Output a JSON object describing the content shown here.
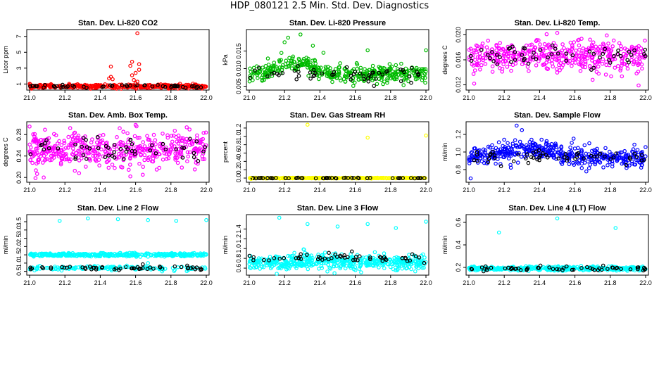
{
  "main_title": "HDP_080121  2.5 Min. Std. Dev. Diagnostics",
  "chart_data": [
    {
      "type": "scatter",
      "title": "Stan. Dev. Li-820 CO2",
      "ylabel": "Licor ppm",
      "xlim": [
        21.0,
        22.0
      ],
      "ylim": [
        0.5,
        7.6
      ],
      "xticks": [
        "21.0",
        "21.2",
        "21.4",
        "21.6",
        "21.8",
        "22.0"
      ],
      "yticks": [
        1,
        3,
        5,
        7
      ],
      "ytick_labels": [
        "1",
        "3",
        "5",
        "7"
      ],
      "series": [
        {
          "name": "main",
          "color": "#ff0000",
          "base": 0.7,
          "noise": 0.12,
          "n": 380
        },
        {
          "name": "black",
          "color": "#000000",
          "base": 0.7,
          "noise": 0.08,
          "n": 55
        }
      ],
      "outliers": [
        {
          "x": 21.61,
          "y": 7.4
        },
        {
          "x": 21.58,
          "y": 3.8
        },
        {
          "x": 21.57,
          "y": 3.3
        },
        {
          "x": 21.62,
          "y": 3.5
        },
        {
          "x": 21.62,
          "y": 2.8
        },
        {
          "x": 21.6,
          "y": 2.4
        },
        {
          "x": 21.58,
          "y": 2.1
        },
        {
          "x": 21.46,
          "y": 3.2
        },
        {
          "x": 21.46,
          "y": 1.9
        },
        {
          "x": 21.45,
          "y": 1.7
        },
        {
          "x": 21.47,
          "y": 1.6
        },
        {
          "x": 21.59,
          "y": 1.5
        },
        {
          "x": 21.61,
          "y": 1.3
        },
        {
          "x": 21.6,
          "y": 1.1
        }
      ]
    },
    {
      "type": "scatter",
      "title": "Stan. Dev. Li-820 Pressure",
      "ylabel": "kPa",
      "xlim": [
        21.0,
        22.0
      ],
      "ylim": [
        0.0045,
        0.0205
      ],
      "xticks": [
        "21.0",
        "21.2",
        "21.4",
        "21.6",
        "21.8",
        "22.0"
      ],
      "yticks": [
        0.005,
        0.01,
        0.015
      ],
      "ytick_labels": [
        "0.005",
        "0.010",
        "0.015"
      ],
      "series": [
        {
          "name": "main",
          "color": "#00bb00",
          "base": 0.0085,
          "noise": 0.0012,
          "n": 420,
          "bump": {
            "center": 21.25,
            "width": 0.12,
            "amp": 0.003
          }
        },
        {
          "name": "black",
          "color": "#000000",
          "base": 0.0085,
          "noise": 0.0012,
          "n": 55
        }
      ],
      "outliers": [
        {
          "x": 21.29,
          "y": 0.0197
        },
        {
          "x": 21.22,
          "y": 0.0188
        },
        {
          "x": 21.2,
          "y": 0.0175
        },
        {
          "x": 21.67,
          "y": 0.0152
        },
        {
          "x": 22.0,
          "y": 0.0152
        },
        {
          "x": 21.42,
          "y": 0.0145
        },
        {
          "x": 21.36,
          "y": 0.0165
        }
      ]
    },
    {
      "type": "scatter",
      "title": "Stan. Dev. Li-820 Temp.",
      "ylabel": "degrees C",
      "xlim": [
        21.0,
        22.0
      ],
      "ylim": [
        0.0115,
        0.0205
      ],
      "xticks": [
        "21.0",
        "21.2",
        "21.4",
        "21.6",
        "21.8",
        "22.0"
      ],
      "yticks": [
        0.012,
        0.016,
        0.02
      ],
      "ytick_labels": [
        "0.012",
        "0.016",
        "0.020"
      ],
      "series": [
        {
          "name": "main",
          "color": "#ff00ff",
          "base": 0.0165,
          "noise": 0.0012,
          "n": 430
        },
        {
          "name": "black",
          "color": "#000000",
          "base": 0.0165,
          "noise": 0.0008,
          "n": 55
        }
      ],
      "outliers": [
        {
          "x": 21.5,
          "y": 0.0203
        },
        {
          "x": 21.44,
          "y": 0.0201
        },
        {
          "x": 21.78,
          "y": 0.0199
        },
        {
          "x": 21.03,
          "y": 0.0122
        },
        {
          "x": 21.96,
          "y": 0.0119
        },
        {
          "x": 21.7,
          "y": 0.0128
        }
      ]
    },
    {
      "type": "scatter",
      "title": "Stan. Dev. Amb. Box Temp.",
      "ylabel": "degrees C",
      "xlim": [
        21.0,
        22.0
      ],
      "ylim": [
        0.195,
        0.3
      ],
      "xticks": [
        "21.0",
        "21.2",
        "21.4",
        "21.6",
        "21.8",
        "22.0"
      ],
      "yticks": [
        0.2,
        0.24,
        0.28
      ],
      "ytick_labels": [
        "0.20",
        "0.24",
        "0.28"
      ],
      "series": [
        {
          "name": "main",
          "color": "#ff00ff",
          "base": 0.252,
          "noise": 0.016,
          "n": 470
        },
        {
          "name": "black",
          "color": "#000000",
          "base": 0.252,
          "noise": 0.012,
          "n": 55
        }
      ],
      "outliers": [
        {
          "x": 21.6,
          "y": 0.298
        },
        {
          "x": 21.23,
          "y": 0.292
        },
        {
          "x": 21.0,
          "y": 0.295
        },
        {
          "x": 21.08,
          "y": 0.2
        },
        {
          "x": 21.28,
          "y": 0.208
        },
        {
          "x": 21.57,
          "y": 0.202
        }
      ]
    },
    {
      "type": "scatter",
      "title": "Stan. Dev. Gas Stream RH",
      "ylabel": "percent",
      "xlim": [
        21.0,
        22.0
      ],
      "ylim": [
        -0.05,
        1.3
      ],
      "xticks": [
        "21.0",
        "21.2",
        "21.4",
        "21.6",
        "21.8",
        "22.0"
      ],
      "yticks": [
        0.0,
        0.2,
        0.4,
        0.6,
        0.8,
        1.0,
        1.2
      ],
      "ytick_labels": [
        "0.0",
        "0.2",
        "0.4",
        "0.6",
        "0.8",
        "1.0",
        "1.2"
      ],
      "series": [
        {
          "name": "main",
          "color": "#ffff00",
          "base": 0.0,
          "noise": 0.004,
          "n": 400
        },
        {
          "name": "black",
          "color": "#000000",
          "base": 0.0,
          "noise": 0.003,
          "n": 55
        }
      ],
      "outliers": [
        {
          "x": 21.33,
          "y": 1.28
        },
        {
          "x": 21.67,
          "y": 0.97
        },
        {
          "x": 22.0,
          "y": 1.02
        },
        {
          "x": 21.01,
          "y": -0.02
        }
      ]
    },
    {
      "type": "scatter",
      "title": "Stan. Dev. Sample Flow",
      "ylabel": "ml/min",
      "xlim": [
        21.0,
        22.0
      ],
      "ylim": [
        0.68,
        1.32
      ],
      "xticks": [
        "21.0",
        "21.2",
        "21.4",
        "21.6",
        "21.8",
        "22.0"
      ],
      "yticks": [
        0.8,
        1.0,
        1.2
      ],
      "ytick_labels": [
        "0.8",
        "1.0",
        "1.2"
      ],
      "series": [
        {
          "name": "main",
          "color": "#0000ff",
          "base": 0.94,
          "noise": 0.055,
          "n": 450,
          "bump": {
            "center": 21.35,
            "width": 0.18,
            "amp": 0.1
          }
        },
        {
          "name": "black",
          "color": "#000000",
          "base": 0.94,
          "noise": 0.04,
          "n": 55
        }
      ],
      "outliers": [
        {
          "x": 21.27,
          "y": 1.3
        },
        {
          "x": 21.01,
          "y": 0.7
        },
        {
          "x": 21.3,
          "y": 1.25
        }
      ]
    },
    {
      "type": "scatter",
      "title": "Stan. Dev. Line 2 Flow",
      "ylabel": "ml/min",
      "xlim": [
        21.0,
        22.0
      ],
      "ylim": [
        0.4,
        3.8
      ],
      "xticks": [
        "21.0",
        "21.2",
        "21.4",
        "21.6",
        "21.8",
        "22.0"
      ],
      "yticks": [
        0.5,
        1.0,
        1.5,
        2.0,
        2.5,
        3.0,
        3.5
      ],
      "ytick_labels": [
        "0.5",
        "1.0",
        "1.5",
        "2.0",
        "2.5",
        "3.0",
        "3.5"
      ],
      "series": [
        {
          "name": "upper",
          "color": "#00ffff",
          "base": 1.5,
          "noise": 0.05,
          "n": 380
        },
        {
          "name": "lower",
          "color": "#00ffff",
          "base": 0.7,
          "noise": 0.06,
          "n": 150
        },
        {
          "name": "black",
          "color": "#000000",
          "base": 0.7,
          "noise": 0.06,
          "n": 55
        }
      ],
      "outliers": [
        {
          "x": 21.17,
          "y": 3.55
        },
        {
          "x": 21.33,
          "y": 3.7
        },
        {
          "x": 21.5,
          "y": 3.65
        },
        {
          "x": 21.67,
          "y": 3.6
        },
        {
          "x": 21.83,
          "y": 3.55
        },
        {
          "x": 22.0,
          "y": 3.6
        },
        {
          "x": 21.55,
          "y": 0.85
        },
        {
          "x": 21.67,
          "y": 1.0
        },
        {
          "x": 21.75,
          "y": 0.5
        }
      ]
    },
    {
      "type": "scatter",
      "title": "Stan. Dev. Line 3 Flow",
      "ylabel": "ml/min",
      "xlim": [
        21.0,
        22.0
      ],
      "ylim": [
        0.5,
        1.65
      ],
      "xticks": [
        "21.0",
        "21.2",
        "21.4",
        "21.6",
        "21.8",
        "22.0"
      ],
      "yticks": [
        0.6,
        0.8,
        1.0,
        1.2,
        1.4
      ],
      "ytick_labels": [
        "0.6",
        "0.8",
        "1.0",
        "1.2",
        "1.4"
      ],
      "series": [
        {
          "name": "main",
          "color": "#00ffff",
          "base": 0.72,
          "noise": 0.08,
          "n": 500
        },
        {
          "name": "black",
          "color": "#000000",
          "base": 0.82,
          "noise": 0.05,
          "n": 55
        }
      ],
      "outliers": [
        {
          "x": 21.17,
          "y": 1.63
        },
        {
          "x": 21.33,
          "y": 1.5
        },
        {
          "x": 21.5,
          "y": 1.45
        },
        {
          "x": 21.67,
          "y": 1.5
        },
        {
          "x": 21.83,
          "y": 1.42
        },
        {
          "x": 22.0,
          "y": 1.55
        },
        {
          "x": 21.31,
          "y": 0.98
        }
      ]
    },
    {
      "type": "scatter",
      "title": "Stan. Dev. Line 4 (LT) Flow",
      "ylabel": "ml/min",
      "xlim": [
        21.0,
        22.0
      ],
      "ylim": [
        0.15,
        0.65
      ],
      "xticks": [
        "21.0",
        "21.2",
        "21.4",
        "21.6",
        "21.8",
        "22.0"
      ],
      "yticks": [
        0.2,
        0.4,
        0.6
      ],
      "ytick_labels": [
        "0.2",
        "0.4",
        "0.6"
      ],
      "series": [
        {
          "name": "main",
          "color": "#00ffff",
          "base": 0.19,
          "noise": 0.008,
          "n": 460
        },
        {
          "name": "black",
          "color": "#000000",
          "base": 0.19,
          "noise": 0.01,
          "n": 55
        }
      ],
      "outliers": [
        {
          "x": 21.17,
          "y": 0.51
        },
        {
          "x": 21.5,
          "y": 0.635
        },
        {
          "x": 21.83,
          "y": 0.55
        }
      ]
    }
  ]
}
